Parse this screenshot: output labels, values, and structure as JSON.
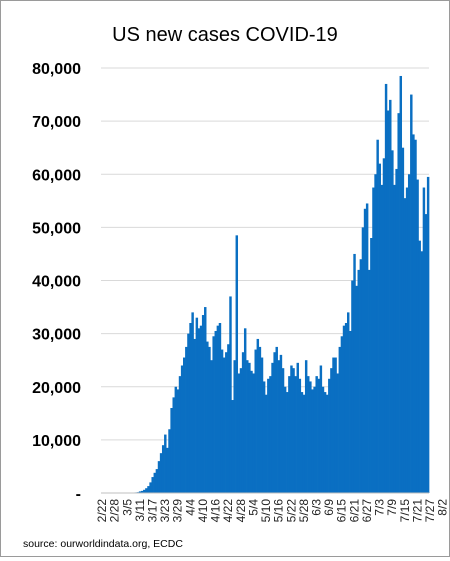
{
  "chart_data": {
    "type": "bar",
    "title": "US new cases COVID-19",
    "source": "source: ourworldindata.org, ECDC",
    "bar_color": "#0a6fc2",
    "ylim": [
      0,
      80000
    ],
    "y_ticks": [
      0,
      10000,
      20000,
      30000,
      40000,
      50000,
      60000,
      70000,
      80000
    ],
    "y_tick_labels": [
      "-",
      "10,000",
      "20,000",
      "30,000",
      "40,000",
      "50,000",
      "60,000",
      "70,000",
      "80,000"
    ],
    "x_tick_labels": [
      "2/22",
      "2/28",
      "3/5",
      "3/11",
      "3/17",
      "3/23",
      "3/29",
      "4/4",
      "4/10",
      "4/16",
      "4/22",
      "4/28",
      "5/4",
      "5/10",
      "5/16",
      "5/22",
      "5/28",
      "6/3",
      "6/9",
      "6/15",
      "6/21",
      "6/27",
      "7/3",
      "7/9",
      "7/15",
      "7/21",
      "7/27",
      "8/2"
    ],
    "start_date": "2/22",
    "tick_every_days": 6,
    "values": [
      0,
      0,
      0,
      0,
      0,
      0,
      0,
      0,
      0,
      0,
      0,
      0,
      20,
      30,
      50,
      80,
      110,
      150,
      300,
      400,
      600,
      900,
      1300,
      2000,
      3000,
      3800,
      4500,
      6000,
      7500,
      9000,
      11000,
      8500,
      12000,
      16000,
      18000,
      20000,
      19500,
      22000,
      24000,
      25500,
      27500,
      30000,
      32000,
      34000,
      29000,
      33000,
      31000,
      31500,
      33500,
      35000,
      28500,
      27500,
      25000,
      29500,
      30500,
      31500,
      32000,
      27000,
      25500,
      26500,
      28000,
      37000,
      17500,
      25000,
      48500,
      22500,
      23500,
      26500,
      31000,
      25000,
      24500,
      23000,
      22500,
      27000,
      29000,
      27500,
      25500,
      21000,
      18500,
      21500,
      22000,
      24500,
      26500,
      27500,
      25000,
      26000,
      23500,
      20000,
      19000,
      22000,
      24000,
      23500,
      22000,
      24500,
      21500,
      19000,
      18500,
      25000,
      22000,
      21000,
      19500,
      20000,
      22000,
      21500,
      24000,
      20000,
      19000,
      18500,
      21500,
      23500,
      25500,
      25500,
      22500,
      27500,
      29500,
      31500,
      32000,
      34000,
      30500,
      40000,
      45000,
      39000,
      42000,
      44000,
      50000,
      53500,
      54500,
      42000,
      48000,
      57500,
      60000,
      66500,
      62000,
      58000,
      63000,
      77000,
      72000,
      74000,
      64500,
      58000,
      61000,
      71500,
      78500,
      65000,
      55500,
      57500,
      60000,
      75000,
      67500,
      66500,
      59000,
      47500,
      45500,
      57500,
      52500,
      59500
    ]
  }
}
